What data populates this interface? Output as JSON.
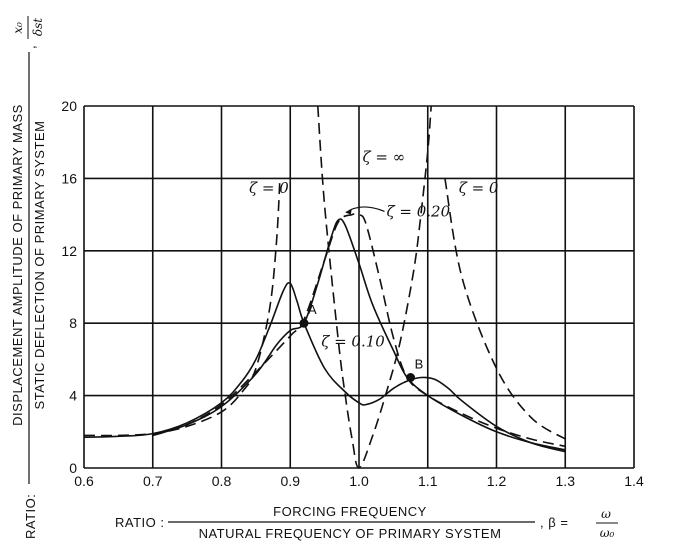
{
  "chart_data": {
    "type": "line",
    "xlim": [
      0.6,
      1.4
    ],
    "ylim": [
      0,
      20
    ],
    "x_ticks": [
      "0.6",
      "0.7",
      "0.8",
      "0.9",
      "1.0",
      "1.1",
      "1.2",
      "1.3",
      "1.4"
    ],
    "y_ticks": [
      "0",
      "4",
      "8",
      "12",
      "16",
      "20"
    ],
    "grid": true,
    "xlabel": {
      "prefix": "RATIO :",
      "numerator": "FORCING FREQUENCY",
      "denominator": "NATURAL FREQUENCY OF PRIMARY SYSTEM",
      "suffix": ", β =",
      "sym_num": "ω",
      "sym_den": "ω₀"
    },
    "ylabel": {
      "prefix": "RATIO:",
      "numerator": "DISPLACEMENT AMPLITUDE OF PRIMARY MASS",
      "denominator": "STATIC DEFLECTION OF PRIMARY SYSTEM",
      "suffix": ",",
      "sym_num": "x₀",
      "sym_den": "δst"
    },
    "series": [
      {
        "name": "ζ = 0",
        "style": "dashed",
        "segments": [
          [
            [
              0.6,
              1.8
            ],
            [
              0.65,
              1.8
            ],
            [
              0.7,
              1.9
            ],
            [
              0.75,
              2.3
            ],
            [
              0.8,
              3.1
            ],
            [
              0.83,
              4.2
            ],
            [
              0.85,
              5.5
            ],
            [
              0.87,
              8.8
            ],
            [
              0.88,
              12.5
            ],
            [
              0.885,
              16.0
            ]
          ],
          [
            [
              0.94,
              20.0
            ],
            [
              0.95,
              14.5
            ],
            [
              0.97,
              7.0
            ],
            [
              0.98,
              4.0
            ],
            [
              0.99,
              1.6
            ],
            [
              1.0,
              0.0
            ],
            [
              1.02,
              1.8
            ],
            [
              1.04,
              4.2
            ],
            [
              1.06,
              7.0
            ],
            [
              1.08,
              11.0
            ],
            [
              1.09,
              14.0
            ],
            [
              1.1,
              17.5
            ],
            [
              1.105,
              20.0
            ]
          ],
          [
            [
              1.125,
              16.0
            ],
            [
              1.15,
              10.5
            ],
            [
              1.2,
              5.5
            ],
            [
              1.25,
              2.8
            ],
            [
              1.3,
              1.6
            ]
          ]
        ]
      },
      {
        "name": "ζ = 0.10",
        "style": "solid",
        "segments": [
          [
            [
              0.6,
              1.7
            ],
            [
              0.65,
              1.75
            ],
            [
              0.7,
              1.9
            ],
            [
              0.75,
              2.5
            ],
            [
              0.8,
              3.6
            ],
            [
              0.83,
              4.8
            ],
            [
              0.85,
              6.0
            ],
            [
              0.87,
              7.8
            ],
            [
              0.89,
              9.8
            ],
            [
              0.9,
              10.2
            ],
            [
              0.91,
              9.2
            ],
            [
              0.92,
              8.0
            ],
            [
              0.95,
              5.5
            ],
            [
              0.98,
              4.2
            ],
            [
              1.0,
              3.6
            ],
            [
              1.01,
              3.5
            ],
            [
              1.03,
              3.8
            ],
            [
              1.05,
              4.4
            ],
            [
              1.07,
              4.8
            ],
            [
              1.09,
              5.0
            ],
            [
              1.11,
              4.9
            ],
            [
              1.13,
              4.4
            ],
            [
              1.15,
              3.7
            ],
            [
              1.2,
              2.3
            ],
            [
              1.25,
              1.4
            ],
            [
              1.3,
              0.9
            ]
          ]
        ]
      },
      {
        "name": "ζ = 0.20",
        "style": "solid",
        "segments": [
          [
            [
              0.7,
              1.8
            ],
            [
              0.75,
              2.4
            ],
            [
              0.8,
              3.4
            ],
            [
              0.85,
              5.2
            ],
            [
              0.88,
              6.8
            ],
            [
              0.9,
              7.6
            ],
            [
              0.92,
              8.0
            ],
            [
              0.94,
              10.2
            ],
            [
              0.96,
              12.8
            ],
            [
              0.97,
              13.7
            ],
            [
              0.98,
              13.4
            ],
            [
              1.0,
              11.3
            ],
            [
              1.02,
              9.0
            ],
            [
              1.05,
              6.5
            ],
            [
              1.07,
              5.0
            ],
            [
              1.1,
              4.0
            ],
            [
              1.15,
              2.9
            ],
            [
              1.2,
              2.0
            ],
            [
              1.25,
              1.4
            ],
            [
              1.3,
              1.0
            ]
          ]
        ]
      },
      {
        "name": "ζ = ∞",
        "style": "dashed",
        "segments": [
          [
            [
              0.7,
              1.8
            ],
            [
              0.75,
              2.4
            ],
            [
              0.8,
              3.5
            ],
            [
              0.85,
              5.3
            ],
            [
              0.9,
              7.3
            ],
            [
              0.92,
              8.2
            ],
            [
              0.95,
              11.5
            ],
            [
              0.97,
              13.6
            ],
            [
              0.99,
              14.0
            ],
            [
              1.0,
              14.0
            ],
            [
              1.01,
              13.5
            ],
            [
              1.03,
              10.5
            ],
            [
              1.05,
              7.2
            ],
            [
              1.07,
              5.0
            ],
            [
              1.1,
              4.0
            ],
            [
              1.15,
              3.0
            ],
            [
              1.2,
              2.2
            ],
            [
              1.25,
              1.6
            ],
            [
              1.3,
              1.2
            ]
          ]
        ]
      }
    ],
    "points": [
      {
        "label": "A",
        "x": 0.92,
        "y": 8.0
      },
      {
        "label": "B",
        "x": 1.075,
        "y": 5.0
      }
    ],
    "annotations": [
      {
        "text": "ζ = 0",
        "x": 0.84,
        "y": 15.2
      },
      {
        "text": "ζ = ∞",
        "x": 1.005,
        "y": 16.9
      },
      {
        "text": "ζ = 0.20",
        "x": 1.04,
        "y": 13.9
      },
      {
        "text": "ζ = 0",
        "x": 1.145,
        "y": 15.2
      },
      {
        "text": "ζ = 0.10",
        "x": 0.945,
        "y": 6.7
      }
    ]
  }
}
